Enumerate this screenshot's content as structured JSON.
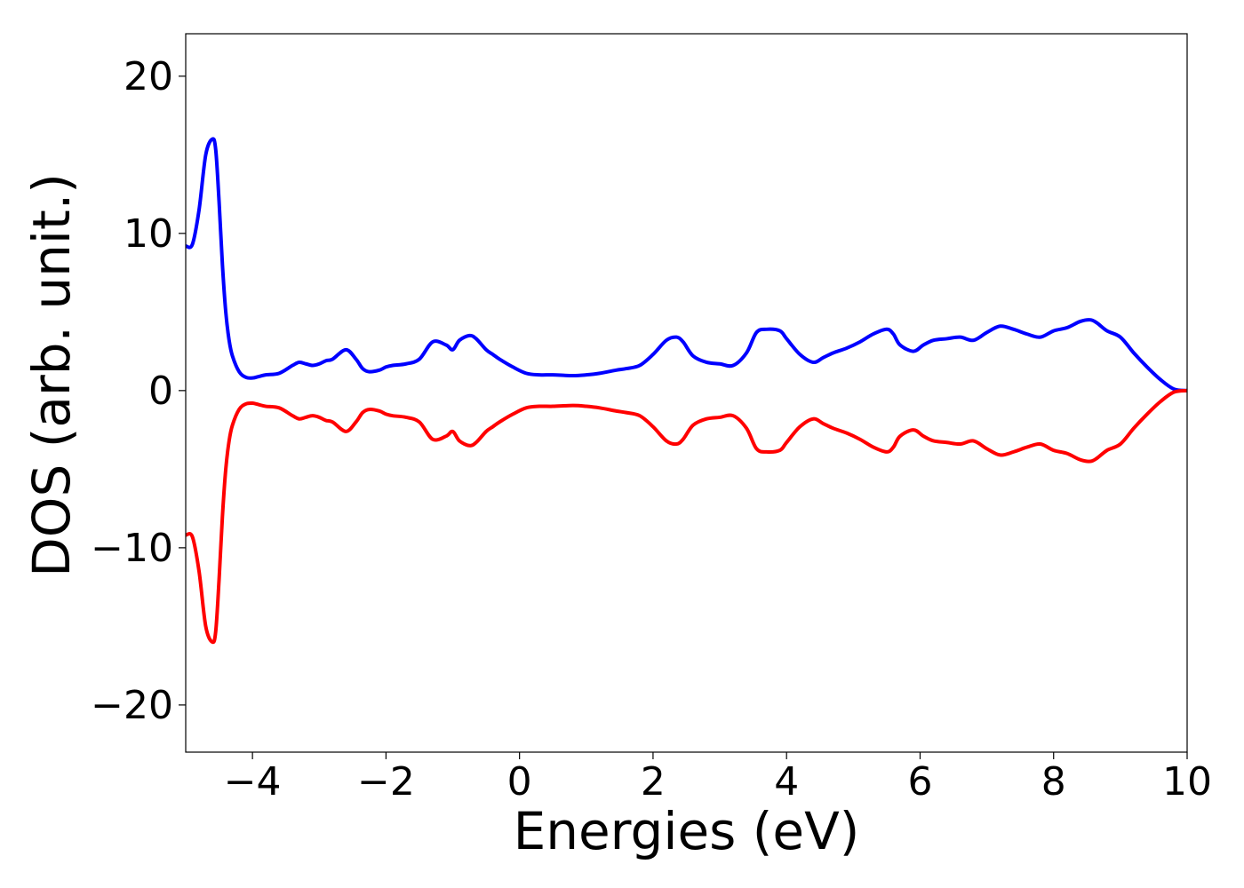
{
  "chart_data": {
    "type": "line",
    "title": "",
    "xlabel": "Energies (eV)",
    "ylabel": "DOS (arb. unit.)",
    "xlim": [
      -5,
      10
    ],
    "ylim": [
      -23,
      22.7
    ],
    "grid": false,
    "legend": "none",
    "x_ticks": [
      -4,
      -2,
      0,
      2,
      4,
      6,
      8,
      10
    ],
    "x_tick_labels": [
      "−4",
      "−2",
      "0",
      "2",
      "4",
      "6",
      "8",
      "10"
    ],
    "y_ticks": [
      -20,
      -10,
      0,
      10,
      20
    ],
    "y_tick_labels": [
      "−20",
      "−10",
      "0",
      "10",
      "20"
    ],
    "series": [
      {
        "color": "#0000ff",
        "x": [
          -5.0,
          -4.9,
          -4.8,
          -4.7,
          -4.6,
          -4.55,
          -4.5,
          -4.45,
          -4.4,
          -4.35,
          -4.3,
          -4.2,
          -4.1,
          -4.0,
          -3.9,
          -3.8,
          -3.6,
          -3.4,
          -3.3,
          -3.2,
          -3.1,
          -3.0,
          -2.9,
          -2.8,
          -2.6,
          -2.45,
          -2.35,
          -2.25,
          -2.1,
          -2.0,
          -1.9,
          -1.7,
          -1.5,
          -1.3,
          -1.1,
          -1.0,
          -0.9,
          -0.75,
          -0.65,
          -0.5,
          -0.4,
          -0.3,
          -0.1,
          0.1,
          0.3,
          0.5,
          0.8,
          1.0,
          1.2,
          1.45,
          1.6,
          1.8,
          2.0,
          2.2,
          2.35,
          2.45,
          2.6,
          2.8,
          3.0,
          3.2,
          3.4,
          3.55,
          3.7,
          3.9,
          4.0,
          4.2,
          4.4,
          4.55,
          4.7,
          4.9,
          5.1,
          5.3,
          5.5,
          5.6,
          5.7,
          5.9,
          6.05,
          6.2,
          6.4,
          6.6,
          6.8,
          7.0,
          7.2,
          7.4,
          7.6,
          7.8,
          8.0,
          8.2,
          8.4,
          8.55,
          8.65,
          8.8,
          9.0,
          9.2,
          9.4,
          9.6,
          9.8,
          10.0
        ],
        "y": [
          9.2,
          9.3,
          11.5,
          15.0,
          16.0,
          15.3,
          12.0,
          8.0,
          5.0,
          3.2,
          2.2,
          1.2,
          0.85,
          0.8,
          0.9,
          1.0,
          1.1,
          1.6,
          1.8,
          1.7,
          1.6,
          1.7,
          1.9,
          2.0,
          2.6,
          2.0,
          1.4,
          1.2,
          1.3,
          1.5,
          1.6,
          1.7,
          2.0,
          3.1,
          2.9,
          2.6,
          3.2,
          3.5,
          3.3,
          2.6,
          2.3,
          2.0,
          1.5,
          1.1,
          1.0,
          1.0,
          0.95,
          1.0,
          1.1,
          1.3,
          1.4,
          1.6,
          2.3,
          3.2,
          3.4,
          3.1,
          2.2,
          1.8,
          1.7,
          1.6,
          2.4,
          3.7,
          3.9,
          3.8,
          3.3,
          2.3,
          1.8,
          2.1,
          2.4,
          2.7,
          3.1,
          3.6,
          3.9,
          3.6,
          2.9,
          2.5,
          2.9,
          3.2,
          3.3,
          3.4,
          3.2,
          3.7,
          4.1,
          3.9,
          3.6,
          3.4,
          3.8,
          4.0,
          4.4,
          4.5,
          4.3,
          3.8,
          3.4,
          2.4,
          1.5,
          0.7,
          0.1,
          0.0
        ]
      },
      {
        "color": "#ff0000",
        "x": [
          -5.0,
          -4.9,
          -4.8,
          -4.7,
          -4.6,
          -4.55,
          -4.5,
          -4.45,
          -4.4,
          -4.35,
          -4.3,
          -4.2,
          -4.1,
          -4.0,
          -3.9,
          -3.8,
          -3.6,
          -3.4,
          -3.3,
          -3.2,
          -3.1,
          -3.0,
          -2.9,
          -2.8,
          -2.6,
          -2.45,
          -2.35,
          -2.25,
          -2.1,
          -2.0,
          -1.9,
          -1.7,
          -1.5,
          -1.3,
          -1.1,
          -1.0,
          -0.9,
          -0.75,
          -0.65,
          -0.5,
          -0.4,
          -0.3,
          -0.1,
          0.1,
          0.3,
          0.5,
          0.8,
          1.0,
          1.2,
          1.45,
          1.6,
          1.8,
          2.0,
          2.2,
          2.35,
          2.45,
          2.6,
          2.8,
          3.0,
          3.2,
          3.4,
          3.55,
          3.7,
          3.9,
          4.0,
          4.2,
          4.4,
          4.55,
          4.7,
          4.9,
          5.1,
          5.3,
          5.5,
          5.6,
          5.7,
          5.9,
          6.05,
          6.2,
          6.4,
          6.6,
          6.8,
          7.0,
          7.2,
          7.4,
          7.6,
          7.8,
          8.0,
          8.2,
          8.4,
          8.55,
          8.65,
          8.8,
          9.0,
          9.2,
          9.4,
          9.6,
          9.8,
          10.0
        ],
        "y": [
          -9.2,
          -9.3,
          -11.5,
          -15.0,
          -16.0,
          -15.3,
          -12.0,
          -8.0,
          -5.0,
          -3.2,
          -2.2,
          -1.2,
          -0.85,
          -0.8,
          -0.9,
          -1.0,
          -1.1,
          -1.6,
          -1.8,
          -1.7,
          -1.6,
          -1.7,
          -1.9,
          -2.0,
          -2.6,
          -2.0,
          -1.4,
          -1.2,
          -1.3,
          -1.5,
          -1.6,
          -1.7,
          -2.0,
          -3.1,
          -2.9,
          -2.6,
          -3.2,
          -3.5,
          -3.3,
          -2.6,
          -2.3,
          -2.0,
          -1.5,
          -1.1,
          -1.0,
          -1.0,
          -0.95,
          -1.0,
          -1.1,
          -1.3,
          -1.4,
          -1.6,
          -2.3,
          -3.2,
          -3.4,
          -3.1,
          -2.2,
          -1.8,
          -1.7,
          -1.6,
          -2.4,
          -3.7,
          -3.9,
          -3.8,
          -3.3,
          -2.3,
          -1.8,
          -2.1,
          -2.4,
          -2.7,
          -3.1,
          -3.6,
          -3.9,
          -3.6,
          -2.9,
          -2.5,
          -2.9,
          -3.2,
          -3.3,
          -3.4,
          -3.2,
          -3.7,
          -4.1,
          -3.9,
          -3.6,
          -3.4,
          -3.8,
          -4.0,
          -4.4,
          -4.5,
          -4.3,
          -3.8,
          -3.4,
          -2.4,
          -1.5,
          -0.7,
          -0.1,
          0.0
        ]
      }
    ]
  }
}
